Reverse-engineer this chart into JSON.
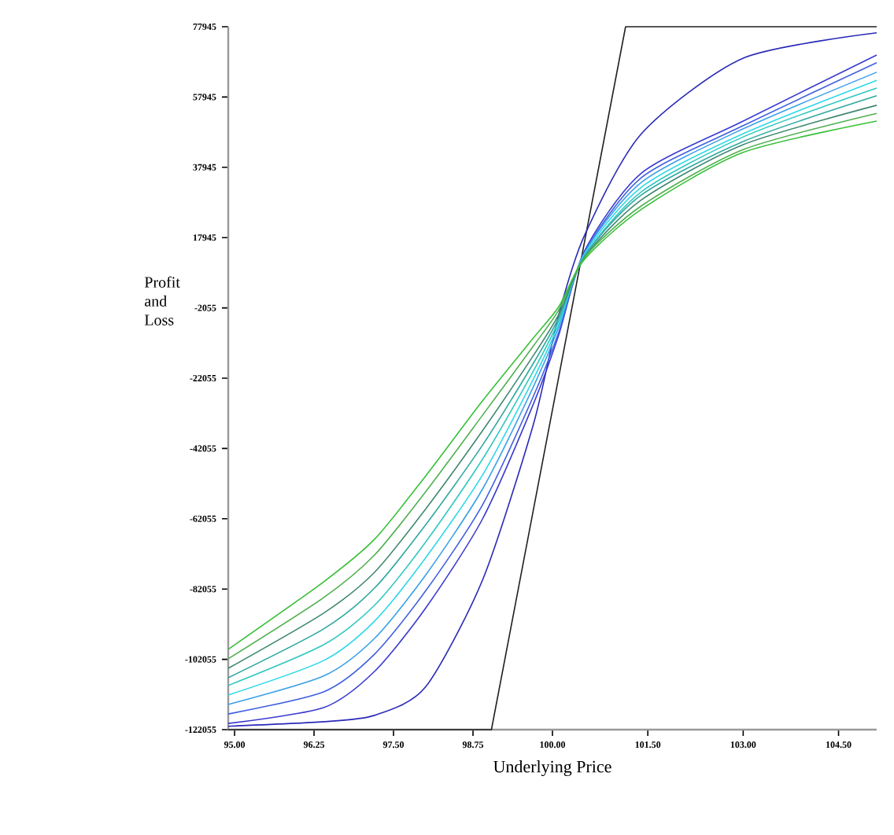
{
  "chart_data": {
    "type": "line",
    "xlabel": "Underlying Price",
    "ylabel": "Profit and Loss",
    "x": [
      94.9,
      96.4,
      97.2,
      98.0,
      98.9,
      99.7,
      100.1,
      100.5,
      101.4,
      103.0,
      105.1
    ],
    "xlim": [
      94.9,
      105.1
    ],
    "ylim": [
      -122055,
      77945
    ],
    "xticks": [
      {
        "value": 95,
        "label": "95.00"
      },
      {
        "value": 96.25,
        "label": "96.25"
      },
      {
        "value": 97.5,
        "label": "97.50"
      },
      {
        "value": 98.75,
        "label": "98.75"
      },
      {
        "value": 100,
        "label": "100.00"
      },
      {
        "value": 101.5,
        "label": "101.50"
      },
      {
        "value": 103,
        "label": "103.00"
      },
      {
        "value": 104.5,
        "label": "104.50"
      }
    ],
    "yticks": [
      77945,
      57945,
      37945,
      17945,
      -2055,
      -22055,
      -42055,
      -62055,
      -82055,
      -102055,
      -122055
    ],
    "grid": false,
    "marker": "none",
    "line_style": "solid",
    "series": [
      {
        "color": "#202020",
        "x": [
          94.9,
          99.04,
          101.15,
          105.1
        ],
        "values": [
          -122055,
          -122055,
          77945,
          77945
        ]
      },
      {
        "color": "#2a2ab8",
        "values": [
          -121100,
          -119800,
          -118000,
          -110000,
          -79500,
          -35200,
          -3900,
          18400,
          47500,
          69000,
          76200
        ]
      },
      {
        "color": "#3a3ad0",
        "values": [
          -120300,
          -115800,
          -105500,
          -87600,
          -62100,
          -29400,
          -9700,
          14000,
          36300,
          51100,
          69900
        ]
      },
      {
        "color": "#4060e0",
        "values": [
          -117600,
          -111300,
          -100600,
          -82700,
          -58100,
          -27200,
          -8900,
          13500,
          35000,
          49800,
          67700
        ]
      },
      {
        "color": "#3aa0e8",
        "values": [
          -114900,
          -106800,
          -96100,
          -78200,
          -53600,
          -24500,
          -7500,
          13500,
          33700,
          48900,
          65000
        ]
      },
      {
        "color": "#30d8e8",
        "values": [
          -112200,
          -102400,
          -91200,
          -73300,
          -49600,
          -22300,
          -6600,
          13100,
          32300,
          47500,
          62700
        ]
      },
      {
        "color": "#30c8c0",
        "values": [
          -109500,
          -97900,
          -86700,
          -68800,
          -45100,
          -20000,
          -5700,
          12600,
          31000,
          46600,
          60500
        ]
      },
      {
        "color": "#30a8a0",
        "values": [
          -107300,
          -93400,
          -81800,
          -63900,
          -41100,
          -17800,
          -4800,
          12600,
          30100,
          45300,
          58300
        ]
      },
      {
        "color": "#408870",
        "values": [
          -104600,
          -88900,
          -77300,
          -59400,
          -37000,
          -15600,
          -3900,
          12200,
          28700,
          44400,
          55600
        ]
      },
      {
        "color": "#50b050",
        "values": [
          -101900,
          -84500,
          -72400,
          -54500,
          -32600,
          -12900,
          -2600,
          12200,
          27000,
          43000,
          53300
        ]
      },
      {
        "color": "#38c038",
        "values": [
          -99200,
          -80000,
          -67900,
          -50000,
          -28500,
          -10600,
          -1700,
          11700,
          26000,
          42200,
          51100
        ]
      }
    ]
  }
}
